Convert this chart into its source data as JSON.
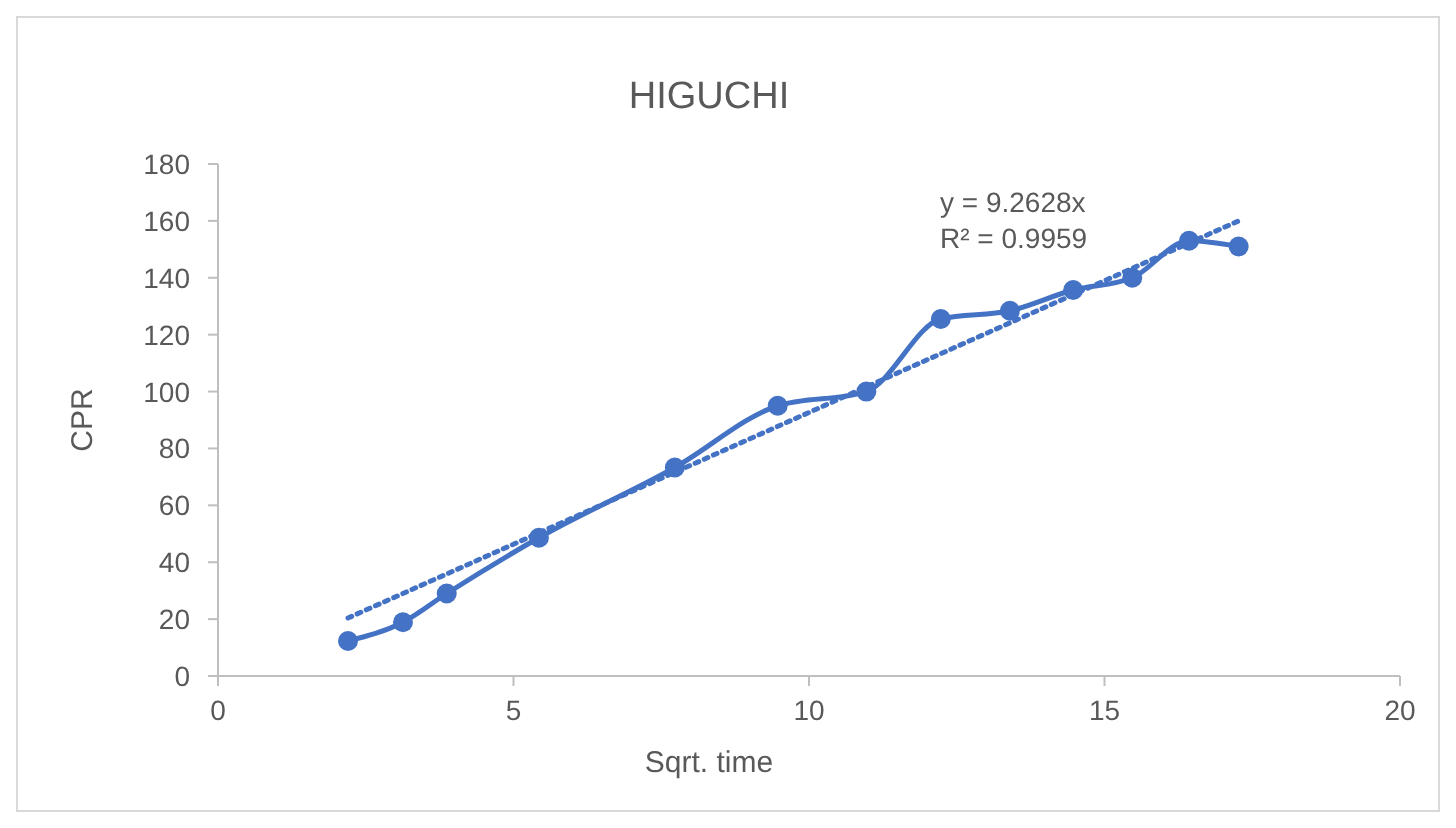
{
  "chart_data": {
    "type": "line",
    "title": "HIGUCHI",
    "xlabel": "Sqrt. time",
    "ylabel": "CPR",
    "xlim": [
      0,
      20
    ],
    "xticks": [
      0,
      5,
      10,
      15,
      20
    ],
    "ylim": [
      0,
      180
    ],
    "yticks": [
      0,
      20,
      40,
      60,
      80,
      100,
      120,
      140,
      160,
      180
    ],
    "grid": false,
    "series": [
      {
        "color": "#4472c4",
        "marker": "circle",
        "line_style": "solid",
        "x": [
          2.2,
          3.13,
          3.87,
          5.43,
          7.73,
          9.47,
          10.97,
          12.23,
          13.4,
          14.47,
          15.47,
          16.43,
          17.27
        ],
        "values": [
          12.3,
          18.9,
          29,
          48.6,
          73.3,
          95,
          100,
          125.5,
          128.4,
          135.7,
          140,
          153,
          151
        ]
      },
      {
        "type": "line",
        "color": "#4472c4",
        "marker": "none",
        "line_style": "dotted",
        "x": [
          2.2,
          17.27
        ],
        "values": [
          20.4,
          160
        ]
      }
    ],
    "annotations": [
      "y = 9.2628x",
      "R² = 0.9959"
    ]
  }
}
